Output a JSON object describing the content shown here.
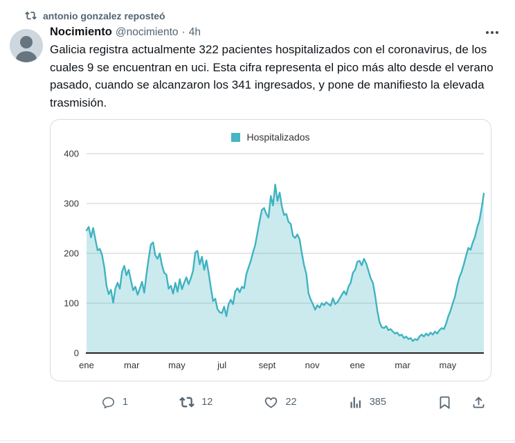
{
  "repost_header": {
    "text": "antonio gonzalez reposteó"
  },
  "tweet": {
    "display_name": "Nocimiento",
    "handle": "@nocimiento",
    "separator": "·",
    "timestamp": "4h",
    "body": "Galicia registra actualmente 322 pacientes hospitalizados con el coronavirus, de los cuales 9 se encuentran en uci. Esta cifra representa el pico más alto desde el verano pasado, cuando se alcanzaron los 341 ingresados, y pone de manifiesto la elevada trasmisión."
  },
  "chart_data": {
    "type": "area",
    "title": "",
    "legend": [
      {
        "label": "Hospitalizados",
        "color": "#45b6c2"
      }
    ],
    "legend_position": "top-center",
    "grid": true,
    "ylim": [
      0,
      400
    ],
    "y_ticks": [
      0,
      100,
      200,
      300,
      400
    ],
    "x_tick_labels": [
      "ene",
      "mar",
      "may",
      "jul",
      "sept",
      "nov",
      "ene",
      "mar",
      "may"
    ],
    "x_tick_positions_months": [
      0,
      2,
      4,
      6,
      8,
      10,
      12,
      14,
      16
    ],
    "x_range_months": 17.6,
    "series": [
      {
        "name": "Hospitalizados",
        "color": "#3fb3c0",
        "fill_opacity": 0.27,
        "values": [
          246,
          253,
          232,
          251,
          228,
          206,
          209,
          197,
          172,
          135,
          118,
          127,
          101,
          130,
          141,
          129,
          163,
          175,
          156,
          167,
          146,
          126,
          133,
          117,
          129,
          143,
          121,
          158,
          190,
          218,
          222,
          196,
          189,
          200,
          176,
          161,
          157,
          129,
          135,
          119,
          141,
          123,
          148,
          128,
          141,
          152,
          138,
          150,
          165,
          202,
          205,
          178,
          193,
          167,
          186,
          161,
          131,
          104,
          109,
          88,
          82,
          80,
          93,
          74,
          98,
          107,
          98,
          124,
          130,
          122,
          133,
          130,
          158,
          172,
          185,
          202,
          217,
          241,
          265,
          287,
          291,
          279,
          272,
          315,
          296,
          338,
          305,
          322,
          294,
          277,
          279,
          263,
          259,
          235,
          231,
          238,
          228,
          200,
          176,
          159,
          120,
          107,
          98,
          87,
          96,
          91,
          100,
          96,
          102,
          98,
          95,
          110,
          98,
          102,
          109,
          117,
          124,
          117,
          133,
          141,
          161,
          167,
          183,
          185,
          176,
          189,
          180,
          165,
          150,
          141,
          116,
          85,
          62,
          52,
          50,
          54,
          46,
          48,
          43,
          39,
          41,
          35,
          37,
          30,
          33,
          28,
          30,
          24,
          28,
          26,
          33,
          37,
          33,
          39,
          35,
          41,
          37,
          43,
          39,
          46,
          50,
          48,
          59,
          74,
          85,
          100,
          113,
          135,
          152,
          163,
          178,
          195,
          211,
          207,
          222,
          233,
          252,
          266,
          291,
          320
        ]
      }
    ]
  },
  "engagement": {
    "reply_count": "1",
    "repost_count": "12",
    "like_count": "22",
    "view_count": "385"
  },
  "colors": {
    "accent_teal": "#3fb3c0",
    "text_primary": "#0f1419",
    "text_secondary": "#536471",
    "gridline": "#cccccc",
    "axis": "#222222",
    "card_border": "#d6dbdf",
    "avatar_bg": "#cdd7dd",
    "avatar_fg": "#66757f"
  }
}
